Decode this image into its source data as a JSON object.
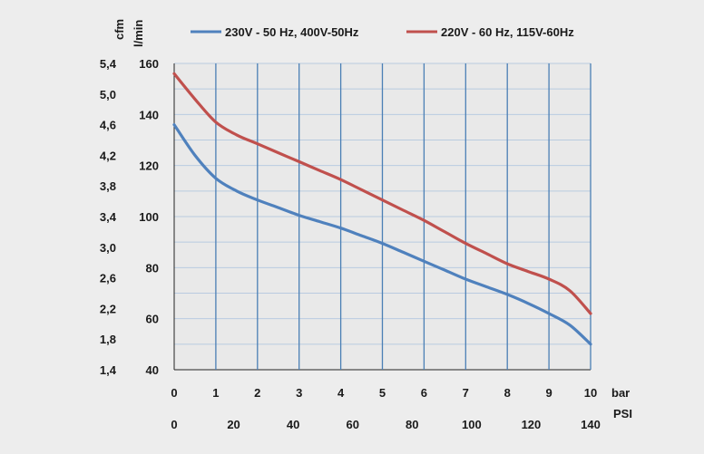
{
  "chart_data": {
    "type": "line",
    "title": "",
    "units": {
      "cfm": "cfm",
      "lmin": "l/min",
      "bar": "bar",
      "psi": "PSI"
    },
    "x": {
      "bar_range": [
        0,
        10
      ],
      "bar_ticks": [
        "0",
        "1",
        "2",
        "3",
        "4",
        "5",
        "6",
        "7",
        "8",
        "9",
        "10"
      ],
      "psi_range": [
        0,
        140
      ],
      "psi_ticks": [
        "0",
        "20",
        "40",
        "60",
        "80",
        "100",
        "120",
        "140"
      ]
    },
    "y": {
      "lmin_range": [
        40,
        160
      ],
      "lmin_ticks": [
        "40",
        "60",
        "80",
        "100",
        "120",
        "140",
        "160"
      ],
      "cfm_range": [
        1.4,
        5.4
      ],
      "cfm_ticks": [
        "1,4",
        "1,8",
        "2,2",
        "2,6",
        "3,0",
        "3,4",
        "3,8",
        "4,2",
        "4,6",
        "5,0",
        "5,4"
      ]
    },
    "grid": true,
    "legend_position": "top",
    "series": [
      {
        "name": "230V - 50 Hz, 400V-50Hz",
        "color": "#4f81bd",
        "points": [
          [
            0,
            136
          ],
          [
            0.5,
            124
          ],
          [
            1,
            115
          ],
          [
            1.5,
            110
          ],
          [
            2,
            106.5
          ],
          [
            2.5,
            103.5
          ],
          [
            3,
            100.5
          ],
          [
            3.5,
            98
          ],
          [
            4,
            95.5
          ],
          [
            4.5,
            92.5
          ],
          [
            5,
            89.5
          ],
          [
            5.5,
            86
          ],
          [
            6,
            82.5
          ],
          [
            6.5,
            79
          ],
          [
            7,
            75.5
          ],
          [
            7.5,
            72.5
          ],
          [
            8,
            69.5
          ],
          [
            8.5,
            66
          ],
          [
            9,
            62
          ],
          [
            9.5,
            57.5
          ],
          [
            10,
            50
          ]
        ]
      },
      {
        "name": "220V - 60 Hz, 115V-60Hz",
        "color": "#c0504d",
        "points": [
          [
            0,
            156
          ],
          [
            0.5,
            146
          ],
          [
            1,
            137
          ],
          [
            1.5,
            132
          ],
          [
            2,
            128.5
          ],
          [
            2.5,
            125
          ],
          [
            3,
            121.5
          ],
          [
            3.5,
            118
          ],
          [
            4,
            114.5
          ],
          [
            4.5,
            110.5
          ],
          [
            5,
            106.5
          ],
          [
            5.5,
            102.5
          ],
          [
            6,
            98.5
          ],
          [
            6.5,
            94
          ],
          [
            7,
            89.5
          ],
          [
            7.5,
            85.5
          ],
          [
            8,
            81.5
          ],
          [
            8.5,
            78.5
          ],
          [
            9,
            75.5
          ],
          [
            9.5,
            71
          ],
          [
            10,
            62
          ]
        ]
      }
    ]
  }
}
